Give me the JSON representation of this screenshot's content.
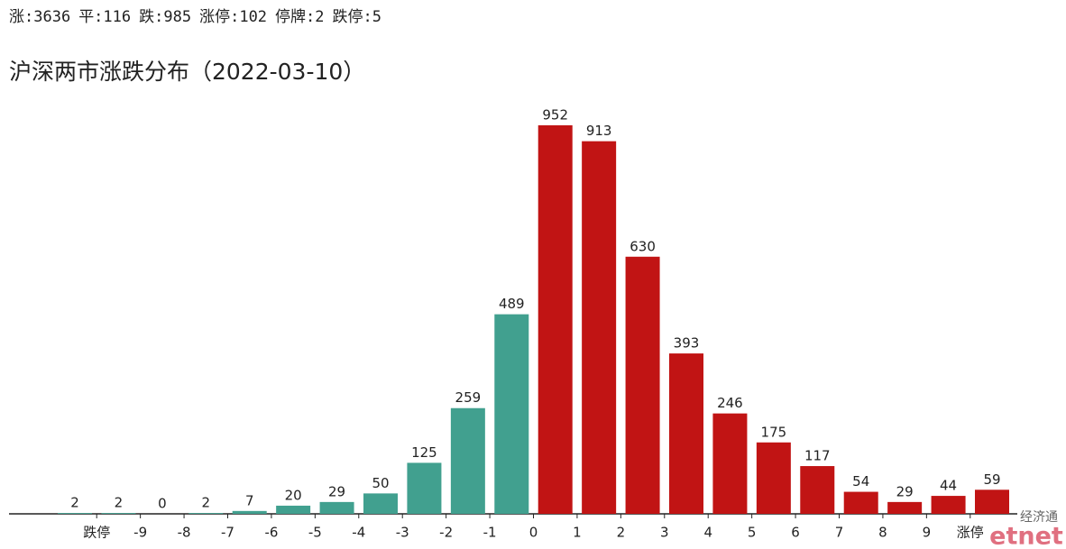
{
  "chart_data": {
    "type": "bar",
    "stats": [
      "涨:3636",
      "平:116",
      "跌:985",
      "涨停:102",
      "停牌:2",
      "跌停:5"
    ],
    "title": "沪深两市涨跌分布（2022-03-10）",
    "values": [
      2,
      2,
      0,
      2,
      7,
      20,
      29,
      50,
      125,
      259,
      489,
      952,
      913,
      630,
      393,
      246,
      175,
      117,
      54,
      29,
      44,
      59
    ],
    "colors": [
      "#41a08f",
      "#41a08f",
      "#41a08f",
      "#41a08f",
      "#41a08f",
      "#41a08f",
      "#41a08f",
      "#41a08f",
      "#41a08f",
      "#41a08f",
      "#41a08f",
      "#c11414",
      "#c11414",
      "#c11414",
      "#c11414",
      "#c11414",
      "#c11414",
      "#c11414",
      "#c11414",
      "#c11414",
      "#c11414",
      "#c11414"
    ],
    "tick_labels": [
      "跌停",
      "-9",
      "-8",
      "-7",
      "-6",
      "-5",
      "-4",
      "-3",
      "-2",
      "-1",
      "0",
      "1",
      "2",
      "3",
      "4",
      "5",
      "6",
      "7",
      "8",
      "9",
      "涨停"
    ],
    "logo": {
      "cn": "经济通",
      "en": "etnet"
    }
  }
}
